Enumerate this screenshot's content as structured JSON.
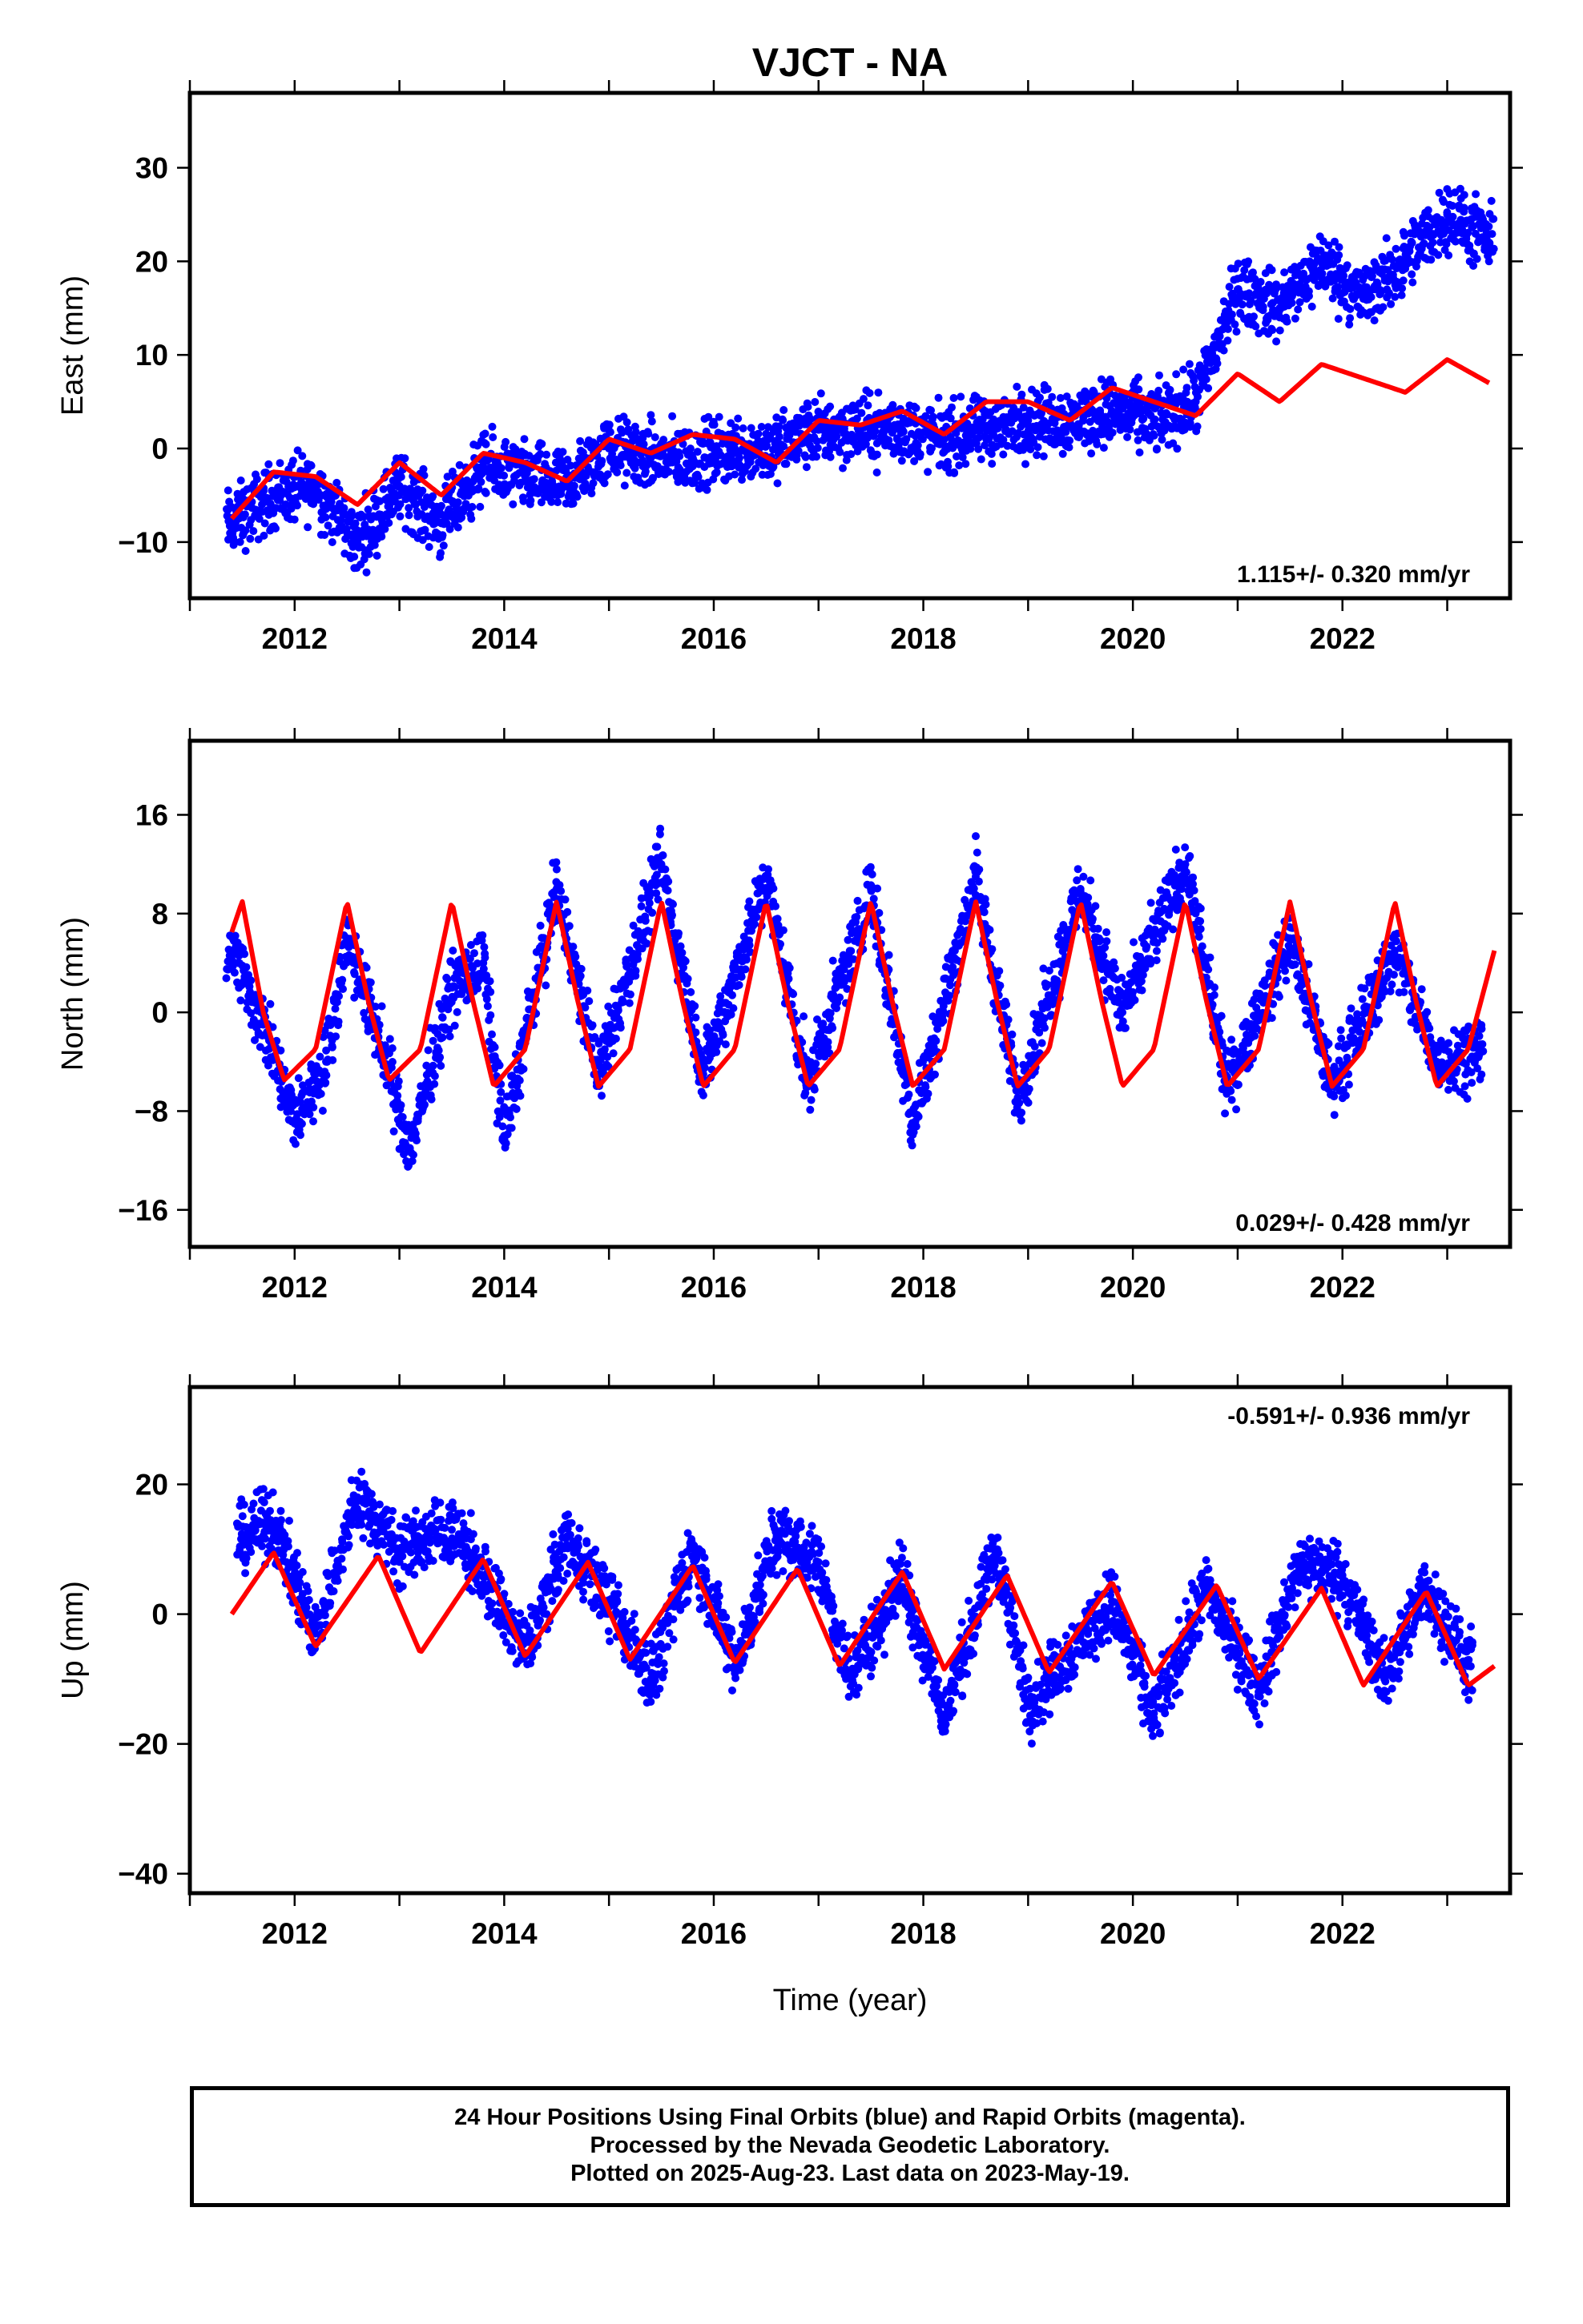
{
  "chart_data": [
    {
      "type": "scatter",
      "title": "VJCT - NA",
      "ylabel": "East (mm)",
      "xlabel": "",
      "xlim": [
        2011.0,
        2023.6
      ],
      "ylim": [
        -16,
        38
      ],
      "xticks": [
        2012,
        2014,
        2016,
        2018,
        2020,
        2022
      ],
      "yticks": [
        -10,
        0,
        10,
        20,
        30
      ],
      "annotation": "1.115+/- 0.320 mm/yr",
      "series": [
        {
          "color": "#0000ff",
          "marker": "dot",
          "x": [
            2011.4,
            2011.8,
            2012.2,
            2012.6,
            2013.0,
            2013.4,
            2013.8,
            2014.2,
            2014.6,
            2015.0,
            2015.4,
            2015.8,
            2016.2,
            2016.6,
            2017.0,
            2017.4,
            2017.8,
            2018.2,
            2018.6,
            2019.0,
            2019.4,
            2019.8,
            2020.2,
            2020.6,
            2021.0,
            2021.4,
            2021.8,
            2022.2,
            2022.6,
            2023.0,
            2023.4
          ],
          "y": [
            -8,
            -5,
            -4,
            -10,
            -4,
            -8,
            -2,
            -3,
            -4,
            0,
            -1,
            -1,
            0,
            0,
            2,
            2,
            2,
            1,
            2,
            3,
            3,
            4,
            3,
            5,
            17,
            15,
            20,
            16,
            20,
            25,
            22
          ]
        },
        {
          "color": "#ff0000",
          "marker": "line",
          "x": [
            2011.4,
            2011.8,
            2012.2,
            2012.6,
            2013.0,
            2013.4,
            2013.8,
            2014.2,
            2014.6,
            2015.0,
            2015.4,
            2015.8,
            2016.2,
            2016.6,
            2017.0,
            2017.4,
            2017.8,
            2018.2,
            2018.6,
            2019.0,
            2019.4,
            2019.8,
            2020.2,
            2020.6,
            2021.0,
            2021.4,
            2021.8,
            2022.2,
            2022.6,
            2023.0,
            2023.4
          ],
          "y": [
            -7.5,
            -2.5,
            -3,
            -6,
            -1.5,
            -5,
            -0.5,
            -1.5,
            -3.5,
            1,
            -0.5,
            1.5,
            1,
            -1.5,
            3,
            2.5,
            4,
            1.5,
            5,
            5,
            3,
            6.5,
            5,
            3.5,
            8,
            5,
            9,
            7.5,
            6,
            9.5,
            7
          ]
        }
      ]
    },
    {
      "type": "scatter",
      "ylabel": "North (mm)",
      "xlabel": "",
      "xlim": [
        2011.0,
        2023.6
      ],
      "ylim": [
        -19,
        22
      ],
      "xticks": [
        2012,
        2014,
        2016,
        2018,
        2020,
        2022
      ],
      "yticks": [
        -16,
        -8,
        0,
        8,
        16
      ],
      "annotation": "0.029+/- 0.428 mm/yr",
      "series": [
        {
          "color": "#0000ff",
          "marker": "dot",
          "x": [
            2011.4,
            2011.7,
            2012.0,
            2012.3,
            2012.5,
            2012.8,
            2013.1,
            2013.5,
            2013.8,
            2014.0,
            2014.5,
            2014.9,
            2015.5,
            2015.9,
            2016.5,
            2016.9,
            2017.5,
            2017.9,
            2018.5,
            2018.9,
            2019.5,
            2019.9,
            2020.5,
            2020.9,
            2021.5,
            2021.9,
            2022.5,
            2022.9,
            2023.3
          ],
          "y": [
            5,
            -1,
            -9,
            -4,
            6,
            -2,
            -11,
            2,
            4,
            -10,
            10,
            -5,
            12,
            -5,
            11,
            -6,
            10,
            -9,
            11,
            -7,
            10,
            0,
            12,
            -6,
            6,
            -6,
            5,
            -4,
            -3
          ]
        },
        {
          "color": "#ff0000",
          "marker": "line",
          "x": [
            2011.4,
            2011.5,
            2011.7,
            2011.9,
            2012.2,
            2012.5,
            2012.7,
            2012.9,
            2013.2,
            2013.5,
            2013.7,
            2013.9,
            2014.2,
            2014.5,
            2014.7,
            2014.9,
            2015.2,
            2015.5,
            2015.7,
            2015.9,
            2016.2,
            2016.5,
            2016.7,
            2016.9,
            2017.2,
            2017.5,
            2017.7,
            2017.9,
            2018.2,
            2018.5,
            2018.7,
            2018.9,
            2019.2,
            2019.5,
            2019.7,
            2019.9,
            2020.2,
            2020.5,
            2020.7,
            2020.9,
            2021.2,
            2021.5,
            2021.7,
            2021.9,
            2022.2,
            2022.5,
            2022.7,
            2022.9,
            2023.2,
            2023.45
          ],
          "y": [
            6.5,
            9,
            0,
            -5.5,
            -3,
            9,
            1,
            -5.5,
            -3,
            9,
            1,
            -6,
            -3,
            9,
            1,
            -6,
            -3,
            9,
            1,
            -6,
            -3,
            9,
            1,
            -6,
            -3,
            9,
            1,
            -6,
            -3,
            9,
            1,
            -6,
            -3,
            9,
            1,
            -6,
            -3,
            9,
            1,
            -6,
            -3,
            9,
            1,
            -6,
            -3,
            9,
            1,
            -6,
            -3,
            5
          ]
        }
      ]
    },
    {
      "type": "scatter",
      "ylabel": "Up (mm)",
      "xlabel": "Time (year)",
      "xlim": [
        2011.0,
        2023.6
      ],
      "ylim": [
        -43,
        35
      ],
      "xticks": [
        2012,
        2014,
        2016,
        2018,
        2020,
        2022
      ],
      "yticks": [
        -40,
        -20,
        0,
        20
      ],
      "annotation": "-0.591+/- 0.936 mm/yr",
      "series": [
        {
          "color": "#0000ff",
          "marker": "dot",
          "x": [
            2011.5,
            2011.8,
            2012.2,
            2012.6,
            2013.0,
            2013.5,
            2013.8,
            2014.2,
            2014.6,
            2015.0,
            2015.4,
            2015.8,
            2016.2,
            2016.6,
            2017.0,
            2017.3,
            2017.8,
            2018.2,
            2018.7,
            2019.0,
            2019.4,
            2019.8,
            2020.2,
            2020.7,
            2021.2,
            2021.6,
            2022.0,
            2022.4,
            2022.8,
            2023.2
          ],
          "y": [
            12,
            14,
            -3,
            18,
            10,
            13,
            6,
            -6,
            12,
            2,
            -10,
            10,
            -8,
            12,
            8,
            -10,
            6,
            -16,
            10,
            -14,
            -6,
            2,
            -16,
            4,
            -12,
            8,
            6,
            -10,
            4,
            -8
          ]
        },
        {
          "color": "#ff0000",
          "marker": "line",
          "x": [
            2011.4,
            2011.8,
            2012.2,
            2012.8,
            2013.2,
            2013.8,
            2014.2,
            2014.8,
            2015.2,
            2015.8,
            2016.2,
            2016.8,
            2017.2,
            2017.8,
            2018.2,
            2018.8,
            2019.2,
            2019.8,
            2020.2,
            2020.8,
            2021.2,
            2021.8,
            2022.2,
            2022.8,
            2023.2,
            2023.45
          ],
          "y": [
            0,
            9.5,
            -5,
            9,
            -6,
            8.5,
            -6.5,
            8,
            -7,
            7.5,
            -7.5,
            7,
            -8,
            6.5,
            -8.5,
            6,
            -9,
            5,
            -9.5,
            4.5,
            -10,
            4,
            -11,
            3.5,
            -11,
            -8
          ]
        }
      ]
    }
  ],
  "footer": {
    "line1": "24 Hour Positions Using Final Orbits (blue) and Rapid Orbits (magenta).",
    "line2": "Processed by the Nevada Geodetic Laboratory.",
    "line3": "Plotted on 2025-Aug-23. Last data on 2023-May-19."
  }
}
